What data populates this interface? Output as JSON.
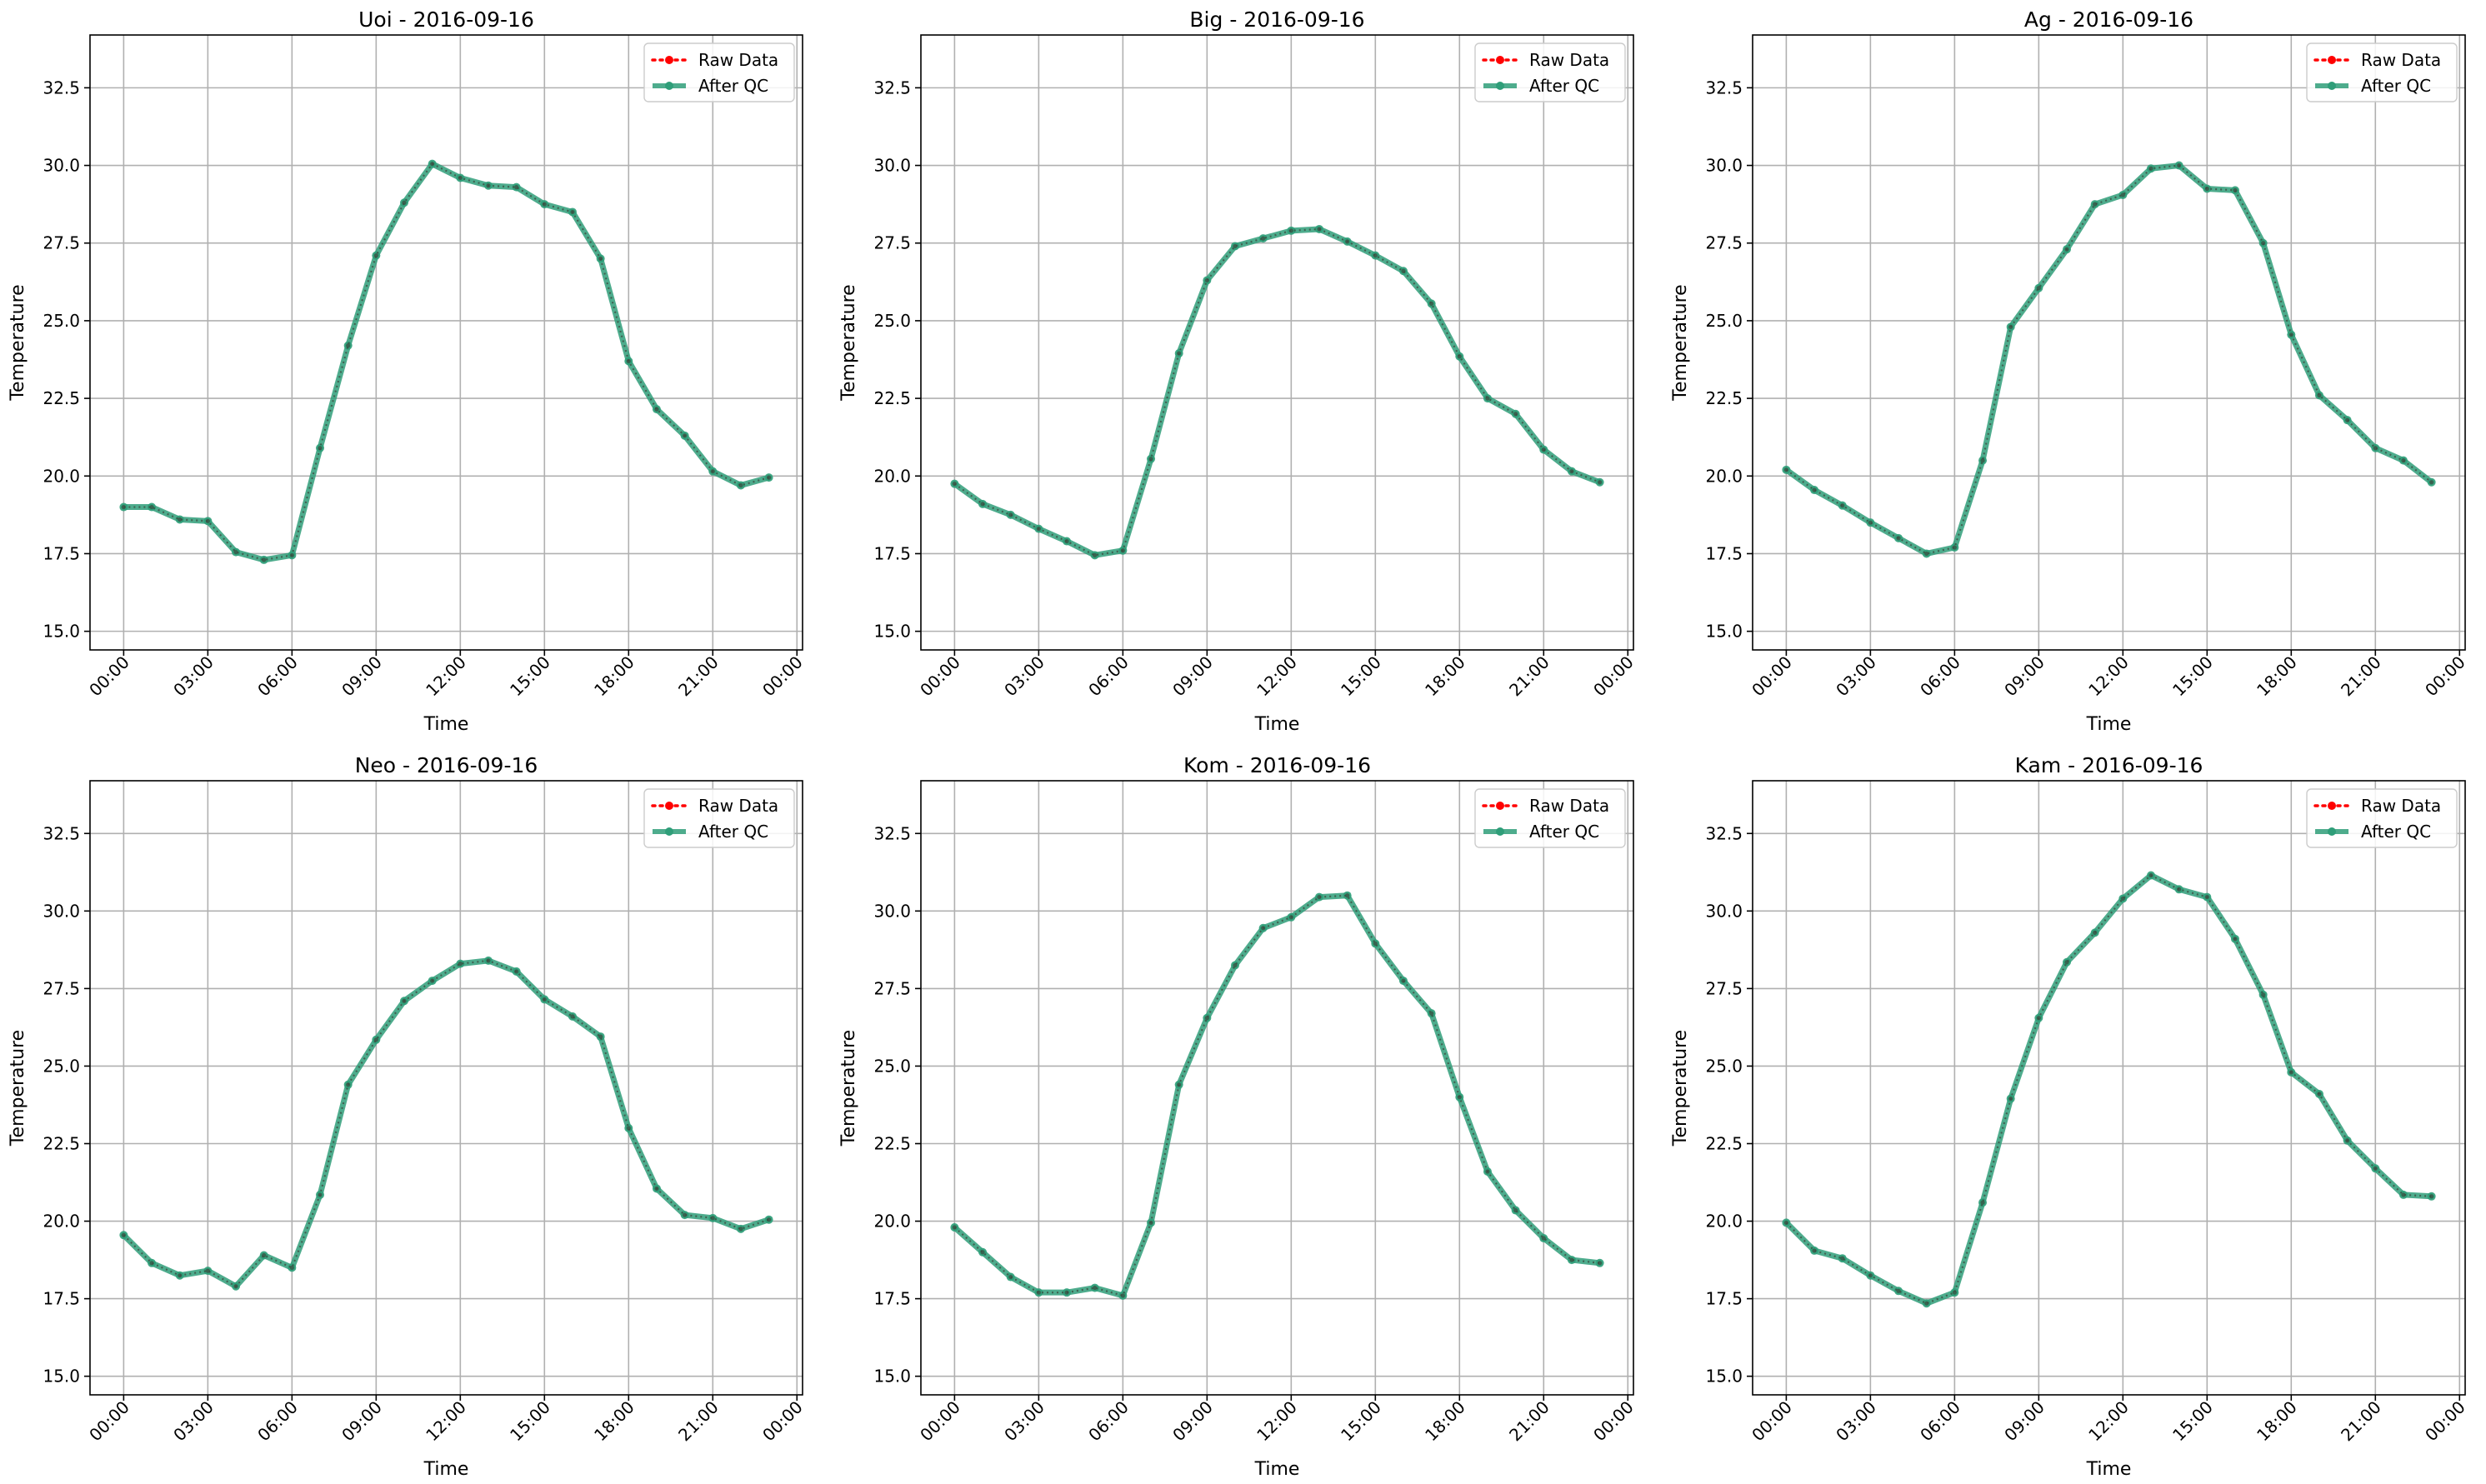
{
  "chart_data": [
    {
      "type": "line",
      "title": "Uoi - 2016-09-16",
      "xlabel": "Time",
      "ylabel": "Temperature",
      "ylim": [
        14.4,
        34.2
      ],
      "yticks": [
        "15.0",
        "17.5",
        "20.0",
        "22.5",
        "25.0",
        "27.5",
        "30.0",
        "32.5"
      ],
      "xticks": [
        "00:00",
        "03:00",
        "06:00",
        "09:00",
        "12:00",
        "15:00",
        "18:00",
        "21:00",
        "00:00"
      ],
      "xlim_hours": [
        -1.2,
        24.2
      ],
      "grid": true,
      "legend_position": "top-right",
      "x_hours": [
        0,
        1,
        2,
        3,
        4,
        5,
        6,
        7,
        8,
        9,
        10,
        11,
        12,
        13,
        14,
        15,
        16,
        17,
        18,
        19,
        20,
        21,
        22,
        23
      ],
      "series": [
        {
          "name": "Raw Data",
          "color": "#ff0000",
          "style": "dotted",
          "values": [
            19.0,
            19.0,
            18.6,
            18.55,
            17.55,
            17.3,
            17.45,
            20.9,
            24.2,
            27.1,
            28.8,
            30.05,
            29.6,
            29.35,
            29.3,
            28.75,
            28.5,
            27.0,
            23.7,
            22.15,
            21.3,
            20.15,
            19.7,
            19.95
          ]
        },
        {
          "name": "After QC",
          "color": "#2f9e79",
          "style": "solid",
          "values": [
            19.0,
            19.0,
            18.6,
            18.55,
            17.55,
            17.3,
            17.45,
            20.9,
            24.2,
            27.1,
            28.8,
            30.05,
            29.6,
            29.35,
            29.3,
            28.75,
            28.5,
            27.0,
            23.7,
            22.15,
            21.3,
            20.15,
            19.7,
            19.95
          ]
        }
      ]
    },
    {
      "type": "line",
      "title": "Big - 2016-09-16",
      "xlabel": "Time",
      "ylabel": "Temperature",
      "ylim": [
        14.4,
        34.2
      ],
      "yticks": [
        "15.0",
        "17.5",
        "20.0",
        "22.5",
        "25.0",
        "27.5",
        "30.0",
        "32.5"
      ],
      "xticks": [
        "00:00",
        "03:00",
        "06:00",
        "09:00",
        "12:00",
        "15:00",
        "18:00",
        "21:00",
        "00:00"
      ],
      "xlim_hours": [
        -1.2,
        24.2
      ],
      "grid": true,
      "legend_position": "top-right",
      "x_hours": [
        0,
        1,
        2,
        3,
        4,
        5,
        6,
        7,
        8,
        9,
        10,
        11,
        12,
        13,
        14,
        15,
        16,
        17,
        18,
        19,
        20,
        21,
        22,
        23
      ],
      "series": [
        {
          "name": "Raw Data",
          "color": "#ff0000",
          "style": "dotted",
          "values": [
            19.75,
            19.1,
            18.75,
            18.3,
            17.9,
            17.45,
            17.6,
            20.55,
            23.95,
            26.3,
            27.4,
            27.65,
            27.9,
            27.95,
            27.55,
            27.1,
            26.6,
            25.55,
            23.85,
            22.5,
            22.0,
            20.85,
            20.15,
            19.8
          ]
        },
        {
          "name": "After QC",
          "color": "#2f9e79",
          "style": "solid",
          "values": [
            19.75,
            19.1,
            18.75,
            18.3,
            17.9,
            17.45,
            17.6,
            20.55,
            23.95,
            26.3,
            27.4,
            27.65,
            27.9,
            27.95,
            27.55,
            27.1,
            26.6,
            25.55,
            23.85,
            22.5,
            22.0,
            20.85,
            20.15,
            19.8
          ]
        }
      ]
    },
    {
      "type": "line",
      "title": "Ag - 2016-09-16",
      "xlabel": "Time",
      "ylabel": "Temperature",
      "ylim": [
        14.4,
        34.2
      ],
      "yticks": [
        "15.0",
        "17.5",
        "20.0",
        "22.5",
        "25.0",
        "27.5",
        "30.0",
        "32.5"
      ],
      "xticks": [
        "00:00",
        "03:00",
        "06:00",
        "09:00",
        "12:00",
        "15:00",
        "18:00",
        "21:00",
        "00:00"
      ],
      "xlim_hours": [
        -1.2,
        24.2
      ],
      "grid": true,
      "legend_position": "top-right",
      "x_hours": [
        0,
        1,
        2,
        3,
        4,
        5,
        6,
        7,
        8,
        9,
        10,
        11,
        12,
        13,
        14,
        15,
        16,
        17,
        18,
        19,
        20,
        21,
        22,
        23
      ],
      "series": [
        {
          "name": "Raw Data",
          "color": "#ff0000",
          "style": "dotted",
          "values": [
            20.2,
            19.55,
            19.05,
            18.5,
            18.0,
            17.5,
            17.7,
            20.5,
            24.8,
            26.05,
            27.3,
            28.75,
            29.05,
            29.9,
            30.0,
            29.25,
            29.2,
            27.5,
            24.55,
            22.6,
            21.8,
            20.9,
            20.5,
            19.8
          ]
        },
        {
          "name": "After QC",
          "color": "#2f9e79",
          "style": "solid",
          "values": [
            20.2,
            19.55,
            19.05,
            18.5,
            18.0,
            17.5,
            17.7,
            20.5,
            24.8,
            26.05,
            27.3,
            28.75,
            29.05,
            29.9,
            30.0,
            29.25,
            29.2,
            27.5,
            24.55,
            22.6,
            21.8,
            20.9,
            20.5,
            19.8
          ]
        }
      ]
    },
    {
      "type": "line",
      "title": "Neo - 2016-09-16",
      "xlabel": "Time",
      "ylabel": "Temperature",
      "ylim": [
        14.4,
        34.2
      ],
      "yticks": [
        "15.0",
        "17.5",
        "20.0",
        "22.5",
        "25.0",
        "27.5",
        "30.0",
        "32.5"
      ],
      "xticks": [
        "00:00",
        "03:00",
        "06:00",
        "09:00",
        "12:00",
        "15:00",
        "18:00",
        "21:00",
        "00:00"
      ],
      "xlim_hours": [
        -1.2,
        24.2
      ],
      "grid": true,
      "legend_position": "top-right",
      "x_hours": [
        0,
        1,
        2,
        3,
        4,
        5,
        6,
        7,
        8,
        9,
        10,
        11,
        12,
        13,
        14,
        15,
        16,
        17,
        18,
        19,
        20,
        21,
        22,
        23
      ],
      "series": [
        {
          "name": "Raw Data",
          "color": "#ff0000",
          "style": "dotted",
          "values": [
            19.55,
            18.65,
            18.25,
            18.4,
            17.9,
            18.9,
            18.5,
            20.85,
            24.4,
            25.85,
            27.1,
            27.75,
            28.3,
            28.4,
            28.05,
            27.15,
            26.6,
            25.95,
            23.0,
            21.05,
            20.2,
            20.1,
            19.75,
            20.05
          ]
        },
        {
          "name": "After QC",
          "color": "#2f9e79",
          "style": "solid",
          "values": [
            19.55,
            18.65,
            18.25,
            18.4,
            17.9,
            18.9,
            18.5,
            20.85,
            24.4,
            25.85,
            27.1,
            27.75,
            28.3,
            28.4,
            28.05,
            27.15,
            26.6,
            25.95,
            23.0,
            21.05,
            20.2,
            20.1,
            19.75,
            20.05
          ]
        }
      ]
    },
    {
      "type": "line",
      "title": "Kom - 2016-09-16",
      "xlabel": "Time",
      "ylabel": "Temperature",
      "ylim": [
        14.4,
        34.2
      ],
      "yticks": [
        "15.0",
        "17.5",
        "20.0",
        "22.5",
        "25.0",
        "27.5",
        "30.0",
        "32.5"
      ],
      "xticks": [
        "00:00",
        "03:00",
        "06:00",
        "09:00",
        "12:00",
        "15:00",
        "18:00",
        "21:00",
        "00:00"
      ],
      "xlim_hours": [
        -1.2,
        24.2
      ],
      "grid": true,
      "legend_position": "top-right",
      "x_hours": [
        0,
        1,
        2,
        3,
        4,
        5,
        6,
        7,
        8,
        9,
        10,
        11,
        12,
        13,
        14,
        15,
        16,
        17,
        18,
        19,
        20,
        21,
        22,
        23
      ],
      "series": [
        {
          "name": "Raw Data",
          "color": "#ff0000",
          "style": "dotted",
          "values": [
            19.8,
            19.0,
            18.2,
            17.7,
            17.7,
            17.85,
            17.6,
            19.95,
            24.4,
            26.55,
            28.25,
            29.45,
            29.8,
            30.45,
            30.5,
            28.95,
            27.75,
            26.7,
            24.0,
            21.6,
            20.35,
            19.45,
            18.75,
            18.65
          ]
        },
        {
          "name": "After QC",
          "color": "#2f9e79",
          "style": "solid",
          "values": [
            19.8,
            19.0,
            18.2,
            17.7,
            17.7,
            17.85,
            17.6,
            19.95,
            24.4,
            26.55,
            28.25,
            29.45,
            29.8,
            30.45,
            30.5,
            28.95,
            27.75,
            26.7,
            24.0,
            21.6,
            20.35,
            19.45,
            18.75,
            18.65
          ]
        }
      ]
    },
    {
      "type": "line",
      "title": "Kam - 2016-09-16",
      "xlabel": "Time",
      "ylabel": "Temperature",
      "ylim": [
        14.4,
        34.2
      ],
      "yticks": [
        "15.0",
        "17.5",
        "20.0",
        "22.5",
        "25.0",
        "27.5",
        "30.0",
        "32.5"
      ],
      "xticks": [
        "00:00",
        "03:00",
        "06:00",
        "09:00",
        "12:00",
        "15:00",
        "18:00",
        "21:00",
        "00:00"
      ],
      "xlim_hours": [
        -1.2,
        24.2
      ],
      "grid": true,
      "legend_position": "top-right",
      "x_hours": [
        0,
        1,
        2,
        3,
        4,
        5,
        6,
        7,
        8,
        9,
        10,
        11,
        12,
        13,
        14,
        15,
        16,
        17,
        18,
        19,
        20,
        21,
        22,
        23
      ],
      "series": [
        {
          "name": "Raw Data",
          "color": "#ff0000",
          "style": "dotted",
          "values": [
            19.95,
            19.05,
            18.8,
            18.25,
            17.75,
            17.35,
            17.7,
            20.6,
            23.95,
            26.55,
            28.35,
            29.3,
            30.4,
            31.15,
            30.7,
            30.45,
            29.1,
            27.3,
            24.8,
            24.1,
            22.6,
            21.7,
            20.85,
            20.8
          ]
        },
        {
          "name": "After QC",
          "color": "#2f9e79",
          "style": "solid",
          "values": [
            19.95,
            19.05,
            18.8,
            18.25,
            17.75,
            17.35,
            17.7,
            20.6,
            23.95,
            26.55,
            28.35,
            29.3,
            30.4,
            31.15,
            30.7,
            30.45,
            29.1,
            27.3,
            24.8,
            24.1,
            22.6,
            21.7,
            20.85,
            20.8
          ]
        }
      ]
    }
  ]
}
